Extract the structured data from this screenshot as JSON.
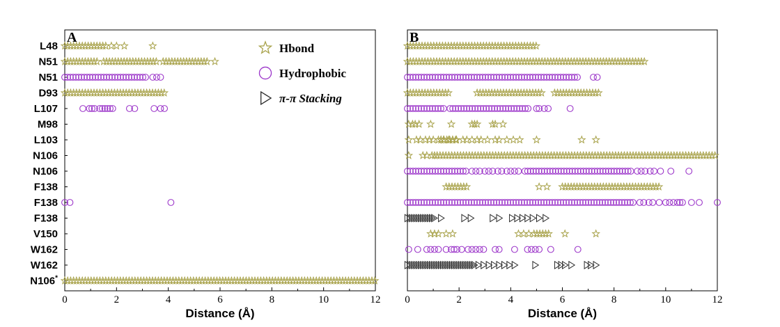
{
  "colors": {
    "hbond": "#a8a24a",
    "hydrophobic": "#9b34c9",
    "stacking": "#2a2a2a",
    "axis": "#000000"
  },
  "legend": [
    {
      "kind": "hbond",
      "label": "Hbond",
      "icon": "star-icon"
    },
    {
      "kind": "hydrophobic",
      "label": "Hydrophobic",
      "icon": "circle-icon"
    },
    {
      "kind": "stacking",
      "label": "π-π Stacking",
      "icon": "triangle-right-icon"
    }
  ],
  "chart_data": [
    {
      "type": "scatter",
      "panel_label": "A",
      "xlabel": "Distance (Å)",
      "xlim": [
        0,
        12
      ],
      "xticks": [
        "0",
        "2",
        "4",
        "6",
        "8",
        "10",
        "12"
      ],
      "rows": [
        {
          "label": "L48",
          "label_sup": "",
          "kind": "hbond",
          "points": [],
          "ranges": [
            [
              0.0,
              1.6
            ]
          ],
          "extra": [
            1.8,
            2.0,
            2.3,
            3.4
          ]
        },
        {
          "label": "N51",
          "label_sup": "",
          "kind": "hbond",
          "points": [],
          "ranges": [
            [
              0.0,
              1.3
            ],
            [
              1.5,
              3.6
            ],
            [
              3.8,
              5.5
            ]
          ],
          "extra": [
            5.8
          ]
        },
        {
          "label": "N51",
          "label_sup": "",
          "kind": "hydrophobic",
          "points": [],
          "ranges": [
            [
              0.0,
              3.2
            ]
          ],
          "extra": [
            3.4,
            3.55,
            3.7
          ]
        },
        {
          "label": "D93",
          "label_sup": "",
          "kind": "hbond",
          "points": [],
          "ranges": [
            [
              0.0,
              3.95
            ]
          ],
          "extra": []
        },
        {
          "label": "L107",
          "label_sup": "",
          "kind": "hydrophobic",
          "points": [
            0.7,
            0.95,
            1.05,
            1.15,
            1.35,
            1.45,
            1.55,
            1.65,
            1.75,
            1.85,
            2.5,
            2.7,
            3.45,
            3.7,
            3.85
          ],
          "ranges": [],
          "extra": []
        },
        {
          "label": "M98",
          "label_sup": "",
          "kind": "none",
          "points": [],
          "ranges": [],
          "extra": []
        },
        {
          "label": "L103",
          "label_sup": "",
          "kind": "none",
          "points": [],
          "ranges": [],
          "extra": []
        },
        {
          "label": "N106",
          "label_sup": "",
          "kind": "none",
          "points": [],
          "ranges": [],
          "extra": []
        },
        {
          "label": "N106",
          "label_sup": "",
          "kind": "none",
          "points": [],
          "ranges": [],
          "extra": []
        },
        {
          "label": "F138",
          "label_sup": "",
          "kind": "none",
          "points": [],
          "ranges": [],
          "extra": []
        },
        {
          "label": "F138",
          "label_sup": "",
          "kind": "hydrophobic",
          "points": [
            0.0,
            0.2,
            4.1
          ],
          "ranges": [],
          "extra": []
        },
        {
          "label": "F138",
          "label_sup": "",
          "kind": "none",
          "points": [],
          "ranges": [],
          "extra": []
        },
        {
          "label": "V150",
          "label_sup": "",
          "kind": "none",
          "points": [],
          "ranges": [],
          "extra": []
        },
        {
          "label": "W162",
          "label_sup": "",
          "kind": "none",
          "points": [],
          "ranges": [],
          "extra": []
        },
        {
          "label": "W162",
          "label_sup": "",
          "kind": "none",
          "points": [],
          "ranges": [],
          "extra": []
        },
        {
          "label": "N106",
          "label_sup": "*",
          "kind": "hbond",
          "points": [],
          "ranges": [
            [
              0.0,
              12.0
            ]
          ],
          "extra": []
        }
      ]
    },
    {
      "type": "scatter",
      "panel_label": "B",
      "xlabel": "Distance (Å)",
      "xlim": [
        0,
        12
      ],
      "xticks": [
        "0",
        "2",
        "4",
        "6",
        "8",
        "10",
        "12"
      ],
      "rows": [
        {
          "label": "",
          "label_sup": "",
          "kind": "hbond",
          "points": [],
          "ranges": [
            [
              0.0,
              5.0
            ]
          ],
          "extra": []
        },
        {
          "label": "",
          "label_sup": "",
          "kind": "hbond",
          "points": [],
          "ranges": [
            [
              0.0,
              9.2
            ]
          ],
          "extra": []
        },
        {
          "label": "",
          "label_sup": "",
          "kind": "hydrophobic",
          "points": [],
          "ranges": [
            [
              0.0,
              6.6
            ]
          ],
          "extra": [
            7.2,
            7.35
          ]
        },
        {
          "label": "",
          "label_sup": "",
          "kind": "hbond",
          "points": [],
          "ranges": [
            [
              0.0,
              1.6
            ],
            [
              2.7,
              5.3
            ],
            [
              5.7,
              7.5
            ]
          ],
          "extra": []
        },
        {
          "label": "",
          "label_sup": "",
          "kind": "hydrophobic",
          "points": [],
          "ranges": [
            [
              0.0,
              1.5
            ],
            [
              1.65,
              4.7
            ]
          ],
          "extra": [
            5.0,
            5.1,
            5.3,
            5.45,
            6.3
          ]
        },
        {
          "label": "",
          "label_sup": "",
          "kind": "hbond",
          "points": [
            0.05,
            0.2,
            0.3,
            0.45,
            0.9,
            1.7,
            2.5,
            2.6,
            2.7,
            3.3,
            3.4,
            3.7
          ],
          "ranges": [],
          "extra": []
        },
        {
          "label": "",
          "label_sup": "",
          "kind": "hbond",
          "points": [
            0.05,
            0.35,
            0.5,
            0.7,
            0.85,
            1.0,
            1.2,
            1.3,
            1.4,
            1.6,
            1.75,
            1.9,
            2.15,
            2.3,
            2.5,
            2.7,
            2.85,
            3.1,
            3.4,
            3.55,
            3.85,
            4.1,
            4.35,
            5.0,
            6.75,
            7.3
          ],
          "ranges": [
            [
              1.3,
              1.9
            ]
          ],
          "extra": []
        },
        {
          "label": "",
          "label_sup": "",
          "kind": "hbond",
          "points": [
            0.05,
            0.6,
            0.75,
            0.95,
            1.05
          ],
          "ranges": [
            [
              1.15,
              12.0
            ]
          ],
          "extra": []
        },
        {
          "label": "",
          "label_sup": "",
          "kind": "hydrophobic",
          "points": [
            2.5,
            2.65,
            2.8,
            3.0,
            3.15,
            3.3,
            3.5,
            3.65,
            3.85,
            4.0,
            4.15,
            4.3,
            8.9,
            9.05,
            9.2,
            9.4,
            9.55,
            9.8,
            10.2,
            10.9
          ],
          "ranges": [
            [
              0.0,
              2.3
            ],
            [
              4.55,
              8.7
            ]
          ],
          "extra": []
        },
        {
          "label": "",
          "label_sup": "",
          "kind": "hbond",
          "points": [
            5.1,
            5.4
          ],
          "ranges": [
            [
              1.5,
              2.3
            ],
            [
              6.0,
              9.8
            ]
          ],
          "extra": []
        },
        {
          "label": "",
          "label_sup": "",
          "kind": "hydrophobic",
          "points": [
            9.0,
            9.15,
            9.35,
            9.5,
            9.75,
            10.0,
            10.15,
            10.3,
            10.45,
            10.55,
            10.65,
            11.0,
            11.3,
            12.0
          ],
          "ranges": [
            [
              0.0,
              8.8
            ]
          ],
          "extra": []
        },
        {
          "label": "",
          "label_sup": "",
          "kind": "stacking",
          "points": [
            1.3,
            2.2,
            2.45,
            3.3,
            3.55,
            4.05,
            4.25,
            4.45,
            4.65,
            4.85,
            5.1,
            5.35
          ],
          "ranges": [
            [
              0.0,
              1.1
            ]
          ],
          "extra": []
        },
        {
          "label": "",
          "label_sup": "",
          "kind": "hbond",
          "points": [
            0.9,
            1.05,
            1.2,
            1.5,
            1.75,
            4.3,
            4.5,
            4.7,
            6.1,
            7.3
          ],
          "ranges": [
            [
              4.9,
              5.5
            ]
          ],
          "extra": []
        },
        {
          "label": "",
          "label_sup": "",
          "kind": "hydrophobic",
          "points": [
            0.05,
            0.4,
            0.75,
            0.9,
            1.05,
            1.2,
            1.5,
            2.1,
            2.35,
            2.5,
            2.65,
            2.8,
            2.95,
            3.4,
            3.55,
            4.15,
            4.65,
            4.8,
            4.95,
            5.1,
            5.55,
            6.6
          ],
          "ranges": [
            [
              1.7,
              2.0
            ]
          ],
          "extra": []
        },
        {
          "label": "",
          "label_sup": "",
          "kind": "stacking",
          "points": [
            2.75,
            2.95,
            3.15,
            3.35,
            3.55,
            3.75,
            3.95,
            4.15,
            4.95,
            5.8,
            5.95,
            6.1,
            6.35,
            6.95,
            7.1,
            7.3
          ],
          "ranges": [
            [
              0.0,
              2.6
            ]
          ],
          "extra": []
        },
        {
          "label": "",
          "label_sup": "",
          "kind": "none",
          "points": [],
          "ranges": [],
          "extra": []
        }
      ]
    }
  ]
}
